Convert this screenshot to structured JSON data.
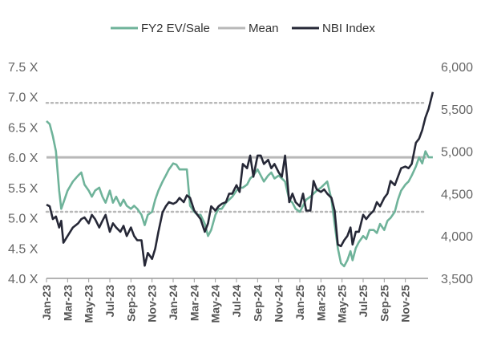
{
  "chart_data": {
    "type": "line",
    "legend": {
      "placement": "top-center"
    },
    "x_labels": [
      "Jan-23",
      "Mar-23",
      "May-23",
      "Jul-23",
      "Sep-23",
      "Nov-23",
      "Jan-24",
      "Mar-24",
      "May-24",
      "Jul-24",
      "Sep-24",
      "Nov-24",
      "Jan-25",
      "Mar-25",
      "May-25",
      "Jul-25",
      "Sep-25",
      "Nov-25"
    ],
    "x_range_months": [
      0,
      36
    ],
    "left_axis": {
      "range": [
        4.0,
        7.5
      ],
      "ticks": [
        "4.0 X",
        "4.5 X",
        "5.0 X",
        "5.5 X",
        "6.0 X",
        "6.5 X",
        "7.0 X",
        "7.5 X"
      ],
      "tick_values": [
        4.0,
        4.5,
        5.0,
        5.5,
        6.0,
        6.5,
        7.0,
        7.5
      ]
    },
    "right_axis": {
      "range": [
        3500,
        6000
      ],
      "ticks": [
        "3,500",
        "4,000",
        "4,500",
        "5,000",
        "5,500",
        "6,000"
      ],
      "tick_values": [
        3500,
        4000,
        4500,
        5000,
        5500,
        6000
      ]
    },
    "series": [
      {
        "name": "FY2 EV/Sale",
        "axis": "left",
        "color": "#6fb39a",
        "points": [
          [
            0,
            6.6
          ],
          [
            0.3,
            6.55
          ],
          [
            0.6,
            6.35
          ],
          [
            0.9,
            6.1
          ],
          [
            1.2,
            5.45
          ],
          [
            1.4,
            5.15
          ],
          [
            1.6,
            5.25
          ],
          [
            2,
            5.45
          ],
          [
            2.5,
            5.6
          ],
          [
            3,
            5.7
          ],
          [
            3.3,
            5.75
          ],
          [
            3.6,
            5.55
          ],
          [
            4,
            5.45
          ],
          [
            4.3,
            5.35
          ],
          [
            4.6,
            5.45
          ],
          [
            5,
            5.5
          ],
          [
            5.3,
            5.35
          ],
          [
            5.6,
            5.25
          ],
          [
            6,
            5.45
          ],
          [
            6.3,
            5.25
          ],
          [
            6.6,
            5.35
          ],
          [
            7,
            5.2
          ],
          [
            7.3,
            5.3
          ],
          [
            7.6,
            5.2
          ],
          [
            8,
            5.15
          ],
          [
            8.3,
            5.2
          ],
          [
            8.6,
            5.15
          ],
          [
            9,
            5.05
          ],
          [
            9.3,
            4.88
          ],
          [
            9.6,
            5.05
          ],
          [
            10,
            5.1
          ],
          [
            10.3,
            5.3
          ],
          [
            10.6,
            5.45
          ],
          [
            11,
            5.6
          ],
          [
            11.3,
            5.7
          ],
          [
            11.6,
            5.8
          ],
          [
            12,
            5.9
          ],
          [
            12.3,
            5.88
          ],
          [
            12.6,
            5.8
          ],
          [
            13,
            5.8
          ],
          [
            13.3,
            5.8
          ],
          [
            13.6,
            5.2
          ],
          [
            14,
            5.1
          ],
          [
            14.3,
            5.05
          ],
          [
            14.6,
            5.05
          ],
          [
            15,
            4.9
          ],
          [
            15.3,
            4.7
          ],
          [
            15.6,
            4.8
          ],
          [
            16,
            5.05
          ],
          [
            16.3,
            5.15
          ],
          [
            16.6,
            5.15
          ],
          [
            17,
            5.25
          ],
          [
            17.3,
            5.3
          ],
          [
            17.6,
            5.35
          ],
          [
            18,
            5.45
          ],
          [
            18.3,
            5.5
          ],
          [
            18.6,
            5.5
          ],
          [
            19,
            5.55
          ],
          [
            19.3,
            5.65
          ],
          [
            19.6,
            5.7
          ],
          [
            20,
            5.8
          ],
          [
            20.3,
            5.7
          ],
          [
            20.6,
            5.6
          ],
          [
            21,
            5.7
          ],
          [
            21.3,
            5.75
          ],
          [
            21.6,
            5.65
          ],
          [
            22,
            5.7
          ],
          [
            22.3,
            5.65
          ],
          [
            22.6,
            5.6
          ],
          [
            23,
            5.3
          ],
          [
            23.3,
            5.25
          ],
          [
            23.6,
            5.15
          ],
          [
            24,
            5.1
          ],
          [
            24.3,
            5.2
          ],
          [
            24.6,
            5.3
          ],
          [
            25,
            5.35
          ],
          [
            25.3,
            5.4
          ],
          [
            25.6,
            5.45
          ],
          [
            26,
            5.5
          ],
          [
            26.3,
            5.55
          ],
          [
            26.6,
            5.6
          ],
          [
            27,
            5.3
          ],
          [
            27.3,
            4.9
          ],
          [
            27.6,
            4.5
          ],
          [
            27.9,
            4.25
          ],
          [
            28.2,
            4.2
          ],
          [
            28.5,
            4.3
          ],
          [
            28.8,
            4.45
          ],
          [
            29,
            4.3
          ],
          [
            29.3,
            4.5
          ],
          [
            29.6,
            4.6
          ],
          [
            30,
            4.7
          ],
          [
            30.3,
            4.65
          ],
          [
            30.6,
            4.8
          ],
          [
            31,
            4.8
          ],
          [
            31.3,
            4.75
          ],
          [
            31.6,
            4.9
          ],
          [
            32,
            4.8
          ],
          [
            32.3,
            4.95
          ],
          [
            32.6,
            5.0
          ],
          [
            33,
            5.1
          ],
          [
            33.3,
            5.3
          ],
          [
            33.6,
            5.45
          ],
          [
            34,
            5.55
          ],
          [
            34.3,
            5.6
          ],
          [
            34.6,
            5.7
          ],
          [
            35,
            5.85
          ],
          [
            35.3,
            6.0
          ],
          [
            35.6,
            5.9
          ],
          [
            35.9,
            6.1
          ],
          [
            36.2,
            6.0
          ],
          [
            36.6,
            6.0
          ]
        ]
      },
      {
        "name": "Mean",
        "axis": "left",
        "color": "#b8b8b8",
        "value": 6.0
      },
      {
        "name": "NBI Index",
        "axis": "right",
        "color": "#262837",
        "points": [
          [
            0,
            4370
          ],
          [
            0.3,
            4350
          ],
          [
            0.6,
            4200
          ],
          [
            0.9,
            4230
          ],
          [
            1.2,
            4100
          ],
          [
            1.4,
            4180
          ],
          [
            1.6,
            3920
          ],
          [
            2,
            4000
          ],
          [
            2.5,
            4100
          ],
          [
            3,
            4150
          ],
          [
            3.3,
            4200
          ],
          [
            3.6,
            4220
          ],
          [
            4,
            4150
          ],
          [
            4.3,
            4250
          ],
          [
            4.6,
            4200
          ],
          [
            5,
            4100
          ],
          [
            5.3,
            4180
          ],
          [
            5.6,
            4250
          ],
          [
            6,
            4050
          ],
          [
            6.3,
            4150
          ],
          [
            6.6,
            4100
          ],
          [
            7,
            4050
          ],
          [
            7.3,
            4120
          ],
          [
            7.6,
            4000
          ],
          [
            8,
            4100
          ],
          [
            8.3,
            4000
          ],
          [
            8.6,
            3950
          ],
          [
            9,
            3950
          ],
          [
            9.3,
            3650
          ],
          [
            9.6,
            3800
          ],
          [
            10,
            3730
          ],
          [
            10.3,
            3850
          ],
          [
            10.6,
            4050
          ],
          [
            11,
            4280
          ],
          [
            11.3,
            4350
          ],
          [
            11.6,
            4400
          ],
          [
            12,
            4380
          ],
          [
            12.3,
            4400
          ],
          [
            12.6,
            4450
          ],
          [
            13,
            4400
          ],
          [
            13.3,
            4480
          ],
          [
            13.6,
            4450
          ],
          [
            14,
            4300
          ],
          [
            14.3,
            4250
          ],
          [
            14.6,
            4200
          ],
          [
            15,
            4050
          ],
          [
            15.3,
            4150
          ],
          [
            15.6,
            4350
          ],
          [
            16,
            4300
          ],
          [
            16.3,
            4350
          ],
          [
            16.6,
            4380
          ],
          [
            17,
            4400
          ],
          [
            17.3,
            4500
          ],
          [
            17.6,
            4500
          ],
          [
            18,
            4600
          ],
          [
            18.3,
            4520
          ],
          [
            18.6,
            4850
          ],
          [
            19,
            4800
          ],
          [
            19.3,
            4950
          ],
          [
            19.6,
            4700
          ],
          [
            20,
            4950
          ],
          [
            20.3,
            4950
          ],
          [
            20.6,
            4850
          ],
          [
            21,
            4900
          ],
          [
            21.3,
            4800
          ],
          [
            21.6,
            4850
          ],
          [
            22,
            4750
          ],
          [
            22.3,
            4700
          ],
          [
            22.6,
            4950
          ],
          [
            23,
            4400
          ],
          [
            23.3,
            4500
          ],
          [
            23.6,
            4400
          ],
          [
            24,
            4350
          ],
          [
            24.3,
            4500
          ],
          [
            24.6,
            4300
          ],
          [
            25,
            4300
          ],
          [
            25.3,
            4650
          ],
          [
            25.6,
            4550
          ],
          [
            26,
            4520
          ],
          [
            26.3,
            4550
          ],
          [
            26.6,
            4500
          ],
          [
            27,
            4450
          ],
          [
            27.3,
            4300
          ],
          [
            27.6,
            3900
          ],
          [
            27.9,
            3880
          ],
          [
            28.2,
            3950
          ],
          [
            28.5,
            4000
          ],
          [
            28.8,
            4100
          ],
          [
            29,
            3900
          ],
          [
            29.3,
            4050
          ],
          [
            29.6,
            4050
          ],
          [
            30,
            4250
          ],
          [
            30.3,
            4200
          ],
          [
            30.6,
            4250
          ],
          [
            31,
            4300
          ],
          [
            31.3,
            4400
          ],
          [
            31.6,
            4350
          ],
          [
            32,
            4450
          ],
          [
            32.3,
            4500
          ],
          [
            32.6,
            4650
          ],
          [
            33,
            4600
          ],
          [
            33.3,
            4700
          ],
          [
            33.6,
            4800
          ],
          [
            34,
            4820
          ],
          [
            34.3,
            4800
          ],
          [
            34.6,
            4850
          ],
          [
            35,
            5100
          ],
          [
            35.3,
            5150
          ],
          [
            35.6,
            5250
          ],
          [
            35.9,
            5400
          ],
          [
            36.2,
            5500
          ],
          [
            36.6,
            5700
          ]
        ]
      }
    ],
    "reference_lines": [
      {
        "style": "dotted",
        "axis": "left",
        "value": 6.9,
        "color": "#b8b8b8"
      },
      {
        "style": "dotted",
        "axis": "left",
        "value": 5.1,
        "color": "#b8b8b8"
      }
    ]
  }
}
